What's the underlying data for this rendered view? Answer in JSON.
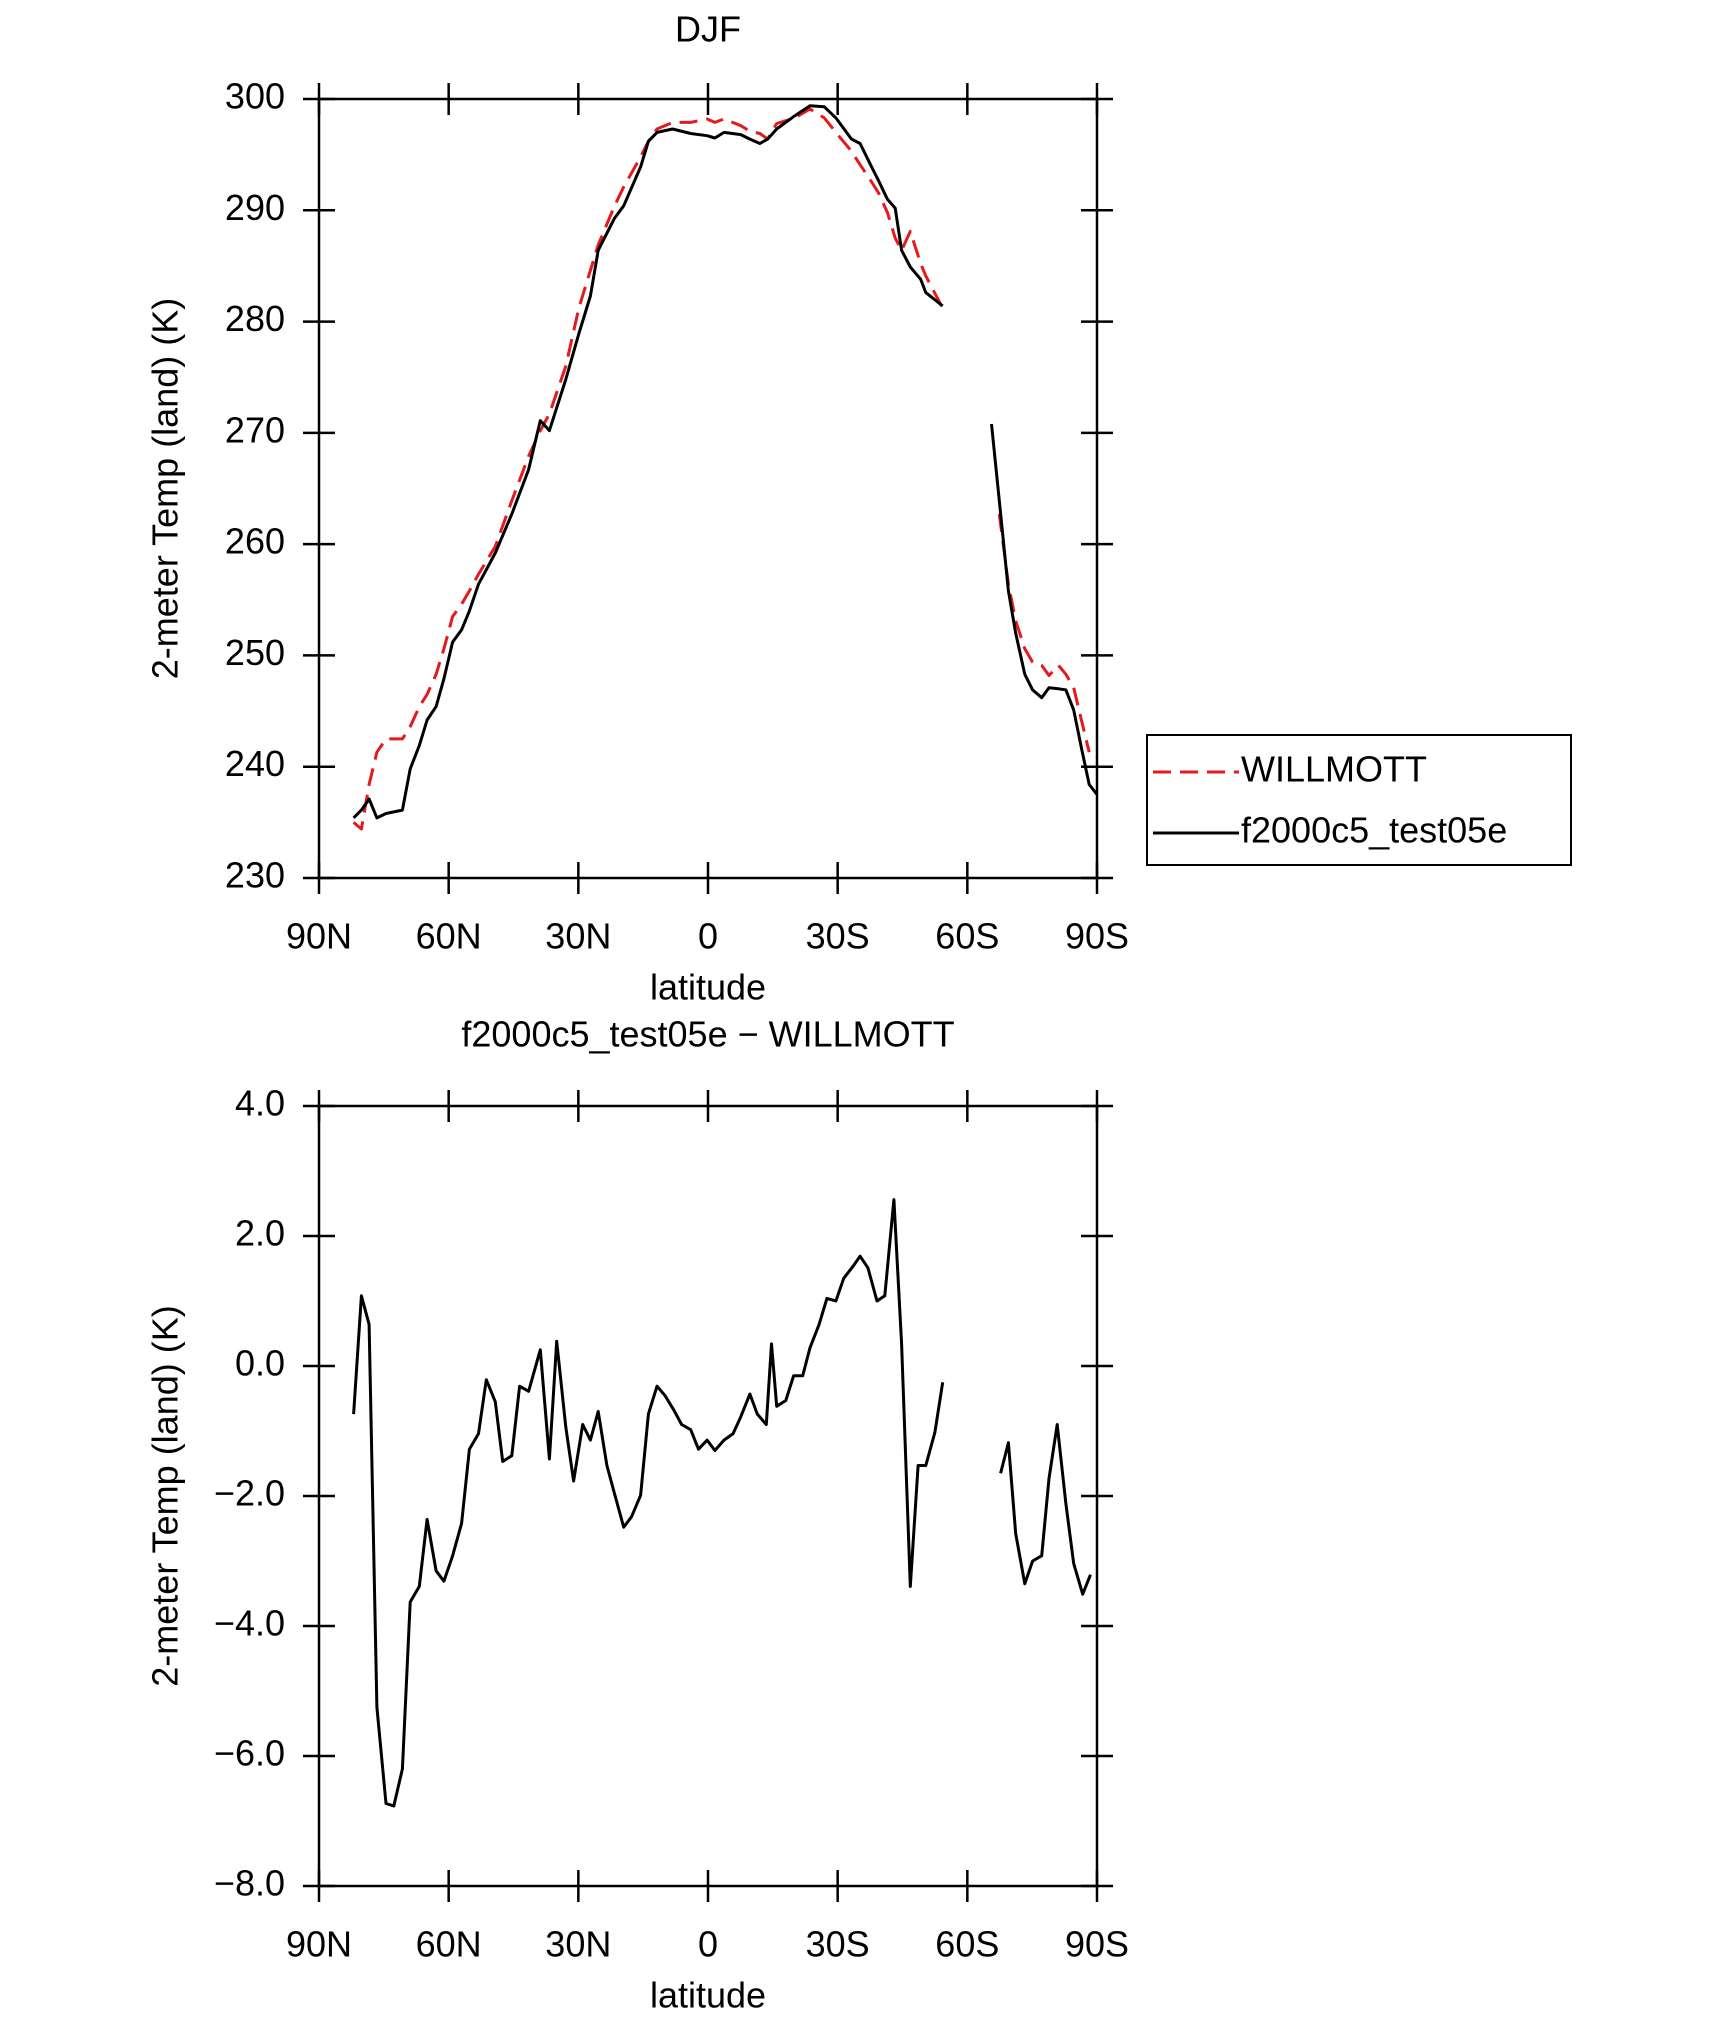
{
  "chart_data": [
    {
      "type": "line",
      "title": "DJF",
      "x_label": "latitude",
      "y_label": "2-meter Temp (land) (K)",
      "x": [
        82,
        80.2,
        78.4,
        76.6,
        74.5,
        70.7,
        68.9,
        66.8,
        65,
        62.9,
        61.1,
        59.1,
        57,
        55.2,
        53.1,
        49.2,
        45.4,
        41.5,
        38.8,
        36.7,
        32.9,
        29.9,
        27.2,
        25.4,
        21.6,
        19.5,
        15.6,
        13.8,
        11.8,
        8.2,
        4,
        0.2,
        -1.6,
        -3.7,
        -7.6,
        -9.7,
        -12,
        -13.8,
        -15.9,
        -20.1,
        -23.6,
        -26.9,
        -29.6,
        -33.2,
        -35.2,
        -37.6,
        -39.4,
        -41.5,
        -43.3,
        -44.8,
        -46.8,
        -49.2,
        -50.4,
        -54.3,
        -60,
        -65.6,
        -67.4,
        -69.5,
        -71.2,
        -73.3,
        -75.1,
        -77.2,
        -78.9,
        -81.1,
        -82.8,
        -84.6,
        -86.4,
        -88.2,
        -90
      ],
      "series": [
        {
          "name": "WILLMOTT",
          "color": "#e41a1c",
          "line_style": "dashed",
          "values": [
            235,
            234.4,
            238.4,
            241.3,
            242.5,
            242.5,
            243.6,
            245.4,
            246.5,
            248.3,
            250.6,
            253.5,
            254.6,
            255.8,
            257.3,
            259.8,
            263.9,
            267.9,
            270.2,
            271.7,
            276,
            281.2,
            284.6,
            286.9,
            290.4,
            292.1,
            294.8,
            296.2,
            297.3,
            297.9,
            297.9,
            298.2,
            297.9,
            298.2,
            297.6,
            297.1,
            296.9,
            296.4,
            297.8,
            298.3,
            299.1,
            298.3,
            297,
            295.3,
            294.1,
            292.7,
            291.6,
            289.8,
            287.5,
            286.4,
            288.1,
            285.2,
            284.1,
            281.2,
            null,
            null,
            262.7,
            256.4,
            253.1,
            250.6,
            249.4,
            249.1,
            248.2,
            249.1,
            248.3,
            247.1,
            244.2,
            241.3,
            null
          ]
        },
        {
          "name": "f2000c5_test05e",
          "color": "#000000",
          "line_style": "solid",
          "values": [
            235.4,
            236.1,
            237.1,
            235.4,
            235.8,
            236.1,
            239.8,
            241.9,
            244.2,
            245.4,
            247.9,
            251.2,
            252.3,
            254,
            256.4,
            259.2,
            262.7,
            266.7,
            271.1,
            270.2,
            274.8,
            278.9,
            282.3,
            286.4,
            289.3,
            290.4,
            293.9,
            296.2,
            297,
            297.3,
            296.9,
            296.7,
            296.5,
            297,
            296.8,
            296.4,
            296,
            296.4,
            297.3,
            298.5,
            299.4,
            299.3,
            298.3,
            296.4,
            296,
            294.1,
            292.7,
            291,
            290.2,
            286.4,
            284.9,
            283.8,
            282.6,
            281.4,
            null,
            270.8,
            263.9,
            255.8,
            252,
            248.3,
            246.9,
            246.2,
            247.1,
            247,
            246.9,
            245.1,
            241.7,
            238.4,
            237.5
          ]
        }
      ],
      "xlim": [
        90,
        -90
      ],
      "xticks": [
        {
          "value": 90,
          "label": "90N"
        },
        {
          "value": 60,
          "label": "60N"
        },
        {
          "value": 30,
          "label": "30N"
        },
        0,
        {
          "value": -30,
          "label": "30S"
        },
        {
          "value": -60,
          "label": "60S"
        },
        {
          "value": -90,
          "label": "90S"
        }
      ],
      "ylim": [
        230,
        300
      ],
      "yticks": [
        230,
        240,
        250,
        260,
        270,
        280,
        290,
        300
      ],
      "legend": "right"
    },
    {
      "type": "line",
      "title": "f2000c5_test05e − WILLMOTT",
      "x_label": "latitude",
      "y_label": "2-meter Temp (land) (K)",
      "x": [
        82,
        80.2,
        78.4,
        76.6,
        74.5,
        72.7,
        70.7,
        68.9,
        66.8,
        65,
        62.9,
        61.1,
        59.1,
        57,
        55.2,
        53.1,
        51.3,
        49.2,
        47.5,
        45.4,
        43.6,
        41.5,
        38.8,
        36.7,
        35,
        32.9,
        31.1,
        29,
        27.2,
        25.4,
        23.4,
        21.6,
        19.5,
        17.7,
        15.6,
        13.8,
        11.8,
        10,
        7.9,
        6.1,
        4,
        2.2,
        0.2,
        -1.6,
        -3.7,
        -5.8,
        -7.6,
        -9.7,
        -11.4,
        -13.5,
        -14.7,
        -15.9,
        -18,
        -19.8,
        -21.9,
        -23.6,
        -25.7,
        -27.5,
        -29.6,
        -31.4,
        -33.5,
        -35.2,
        -37,
        -39.1,
        -40.9,
        -43,
        -44.8,
        -46.8,
        -48.6,
        -50.4,
        -52.5,
        -54.3,
        -60,
        -67.7,
        -69.5,
        -71.2,
        -73.3,
        -75.1,
        -77.2,
        -78.9,
        -80.8,
        -82.8,
        -84.6,
        -86.7,
        -88.5
      ],
      "values": [
        -0.74,
        1.08,
        0.64,
        -5.25,
        -6.73,
        -6.77,
        -6.2,
        -3.63,
        -3.39,
        -2.36,
        -3.15,
        -3.31,
        -2.92,
        -2.42,
        -1.28,
        -1.04,
        -0.21,
        -0.55,
        -1.47,
        -1.38,
        -0.31,
        -0.39,
        0.25,
        -1.43,
        0.38,
        -0.94,
        -1.77,
        -0.9,
        -1.14,
        -0.7,
        -1.53,
        -1.97,
        -2.48,
        -2.32,
        -1.99,
        -0.74,
        -0.31,
        -0.45,
        -0.68,
        -0.9,
        -0.98,
        -1.28,
        -1.14,
        -1.3,
        -1.14,
        -1.04,
        -0.78,
        -0.43,
        -0.74,
        -0.9,
        0.34,
        -0.62,
        -0.53,
        -0.15,
        -0.15,
        0.28,
        0.64,
        1.04,
        1,
        1.35,
        1.53,
        1.69,
        1.51,
        1,
        1.08,
        2.56,
        0.34,
        -3.39,
        -1.53,
        -1.53,
        -1.02,
        -0.25,
        null,
        -1.65,
        -1.18,
        -2.58,
        -3.35,
        -3,
        -2.92,
        -1.73,
        -0.9,
        -2.12,
        -3.04,
        -3.51,
        -3.21
      ],
      "color": "#000000",
      "xlim": [
        90,
        -90
      ],
      "xticks": [
        {
          "value": 90,
          "label": "90N"
        },
        {
          "value": 60,
          "label": "60N"
        },
        {
          "value": 30,
          "label": "30N"
        },
        0,
        {
          "value": -30,
          "label": "30S"
        },
        {
          "value": -60,
          "label": "60S"
        },
        {
          "value": -90,
          "label": "90S"
        }
      ],
      "ylim": [
        -8,
        4
      ],
      "yticks": [
        {
          "value": -8,
          "label": "−8.0"
        },
        {
          "value": -6,
          "label": "−6.0"
        },
        {
          "value": -4,
          "label": "−4.0"
        },
        {
          "value": -2,
          "label": "−2.0"
        },
        {
          "value": 0,
          "label": "0.0"
        },
        {
          "value": 2,
          "label": "2.0"
        },
        {
          "value": 4,
          "label": "4.0"
        }
      ]
    }
  ]
}
